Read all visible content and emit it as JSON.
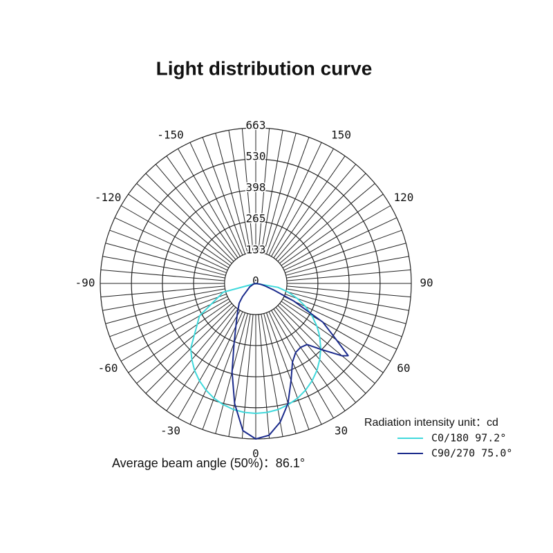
{
  "chart_data": {
    "type": "polar",
    "title": "Light distribution curve",
    "x": [
      -90,
      -75,
      -60,
      -45,
      -40,
      -35,
      -30,
      -25,
      -20,
      -15,
      -10,
      -5,
      0,
      5,
      10,
      15,
      20,
      25,
      30,
      35,
      40,
      45,
      50,
      52,
      55,
      60,
      65,
      70,
      75,
      80,
      90
    ],
    "series": [
      {
        "name": "C0/180 97.2°",
        "color": "#3fd9dc",
        "values": [
          0,
          143,
          277,
          392,
          424,
          454,
          480,
          502,
          521,
          535,
          546,
          552,
          554,
          552,
          546,
          535,
          521,
          502,
          480,
          454,
          424,
          392,
          356,
          341,
          318,
          277,
          234,
          189,
          143,
          96,
          0
        ]
      },
      {
        "name": "C90/270 75.0°",
        "color": "#1a2a8c",
        "values": [
          0,
          10,
          30,
          80,
          110,
          130,
          160,
          200,
          270,
          390,
          520,
          630,
          663,
          650,
          600,
          530,
          440,
          370,
          340,
          333,
          340,
          400,
          480,
          500,
          420,
          330,
          180,
          80,
          40,
          20,
          0
        ]
      }
    ],
    "rlim": [
      0,
      663
    ],
    "rticks": [
      0,
      133,
      265,
      398,
      530,
      663
    ],
    "thetaticks": [
      -150,
      -120,
      -90,
      -60,
      -30,
      0,
      30,
      60,
      90,
      120,
      150
    ],
    "legend_title": "Radiation intensity unit：cd",
    "note": "Average beam angle (50%)：86.1°"
  }
}
